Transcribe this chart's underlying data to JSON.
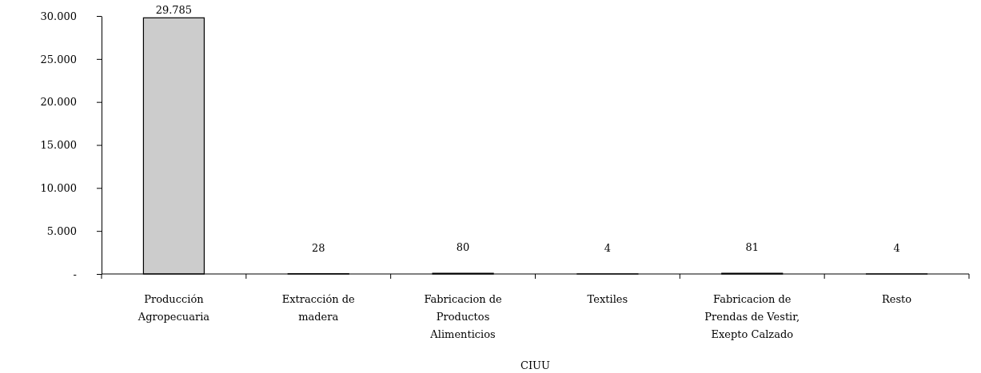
{
  "chart_data": {
    "type": "bar",
    "categories": [
      "Producción Agropecuaria",
      "Extracción de madera",
      "Fabricacion de Productos Alimenticios",
      "Textiles",
      "Fabricacion de Prendas de Vestir, Exepto Calzado",
      "Resto"
    ],
    "values": [
      29785,
      28,
      80,
      4,
      81,
      4
    ],
    "value_labels": [
      "29.785",
      "28",
      "80",
      "4",
      "81",
      "4"
    ],
    "color": "#cccccc",
    "xlabel": "CIUU",
    "ylim": [
      0,
      30000
    ],
    "yticks": [
      {
        "value": 0,
        "label": "-"
      },
      {
        "value": 5000,
        "label": "5.000"
      },
      {
        "value": 10000,
        "label": "10.000"
      },
      {
        "value": 15000,
        "label": "15.000"
      },
      {
        "value": 20000,
        "label": "20.000"
      },
      {
        "value": 25000,
        "label": "25.000"
      },
      {
        "value": 30000,
        "label": "30.000"
      }
    ],
    "grid": false
  }
}
